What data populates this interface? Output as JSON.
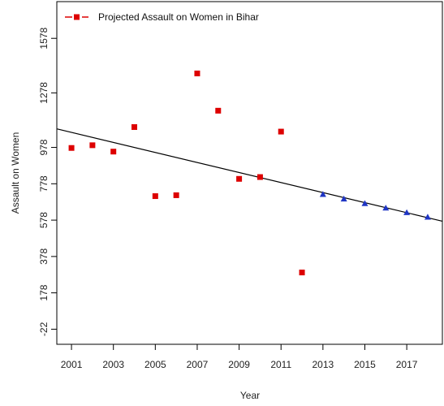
{
  "chart_data": {
    "type": "scatter",
    "xlabel": "Year",
    "ylabel": "Assault on Women",
    "xlim": [
      2000.3,
      2018.7
    ],
    "ylim": [
      -105,
      1780
    ],
    "x_ticks": [
      2001,
      2003,
      2005,
      2007,
      2009,
      2011,
      2013,
      2015,
      2017
    ],
    "y_ticks": [
      -22,
      178,
      378,
      578,
      778,
      978,
      1278,
      1578
    ],
    "grid": false,
    "legend": {
      "position": "top-left",
      "entries": [
        "Projected Assault on Women in Bihar"
      ]
    },
    "series": [
      {
        "marker": "square",
        "color": "#dd0000",
        "x": [
          2001,
          2002,
          2003,
          2004,
          2005,
          2006,
          2007,
          2008,
          2009,
          2010,
          2011,
          2012
        ],
        "y": [
          975,
          990,
          955,
          1090,
          710,
          715,
          1385,
          1180,
          805,
          815,
          1065,
          290
        ]
      },
      {
        "name": "Projected Assault on Women in Bihar",
        "marker": "triangle",
        "color": "#1f35c4",
        "x": [
          2013,
          2014,
          2015,
          2016,
          2017,
          2018
        ],
        "y": [
          720,
          695,
          670,
          645,
          620,
          595
        ]
      }
    ],
    "trend_line": {
      "x": [
        2000.3,
        2018.7
      ],
      "y": [
        1080,
        572
      ],
      "color": "#000000"
    }
  }
}
